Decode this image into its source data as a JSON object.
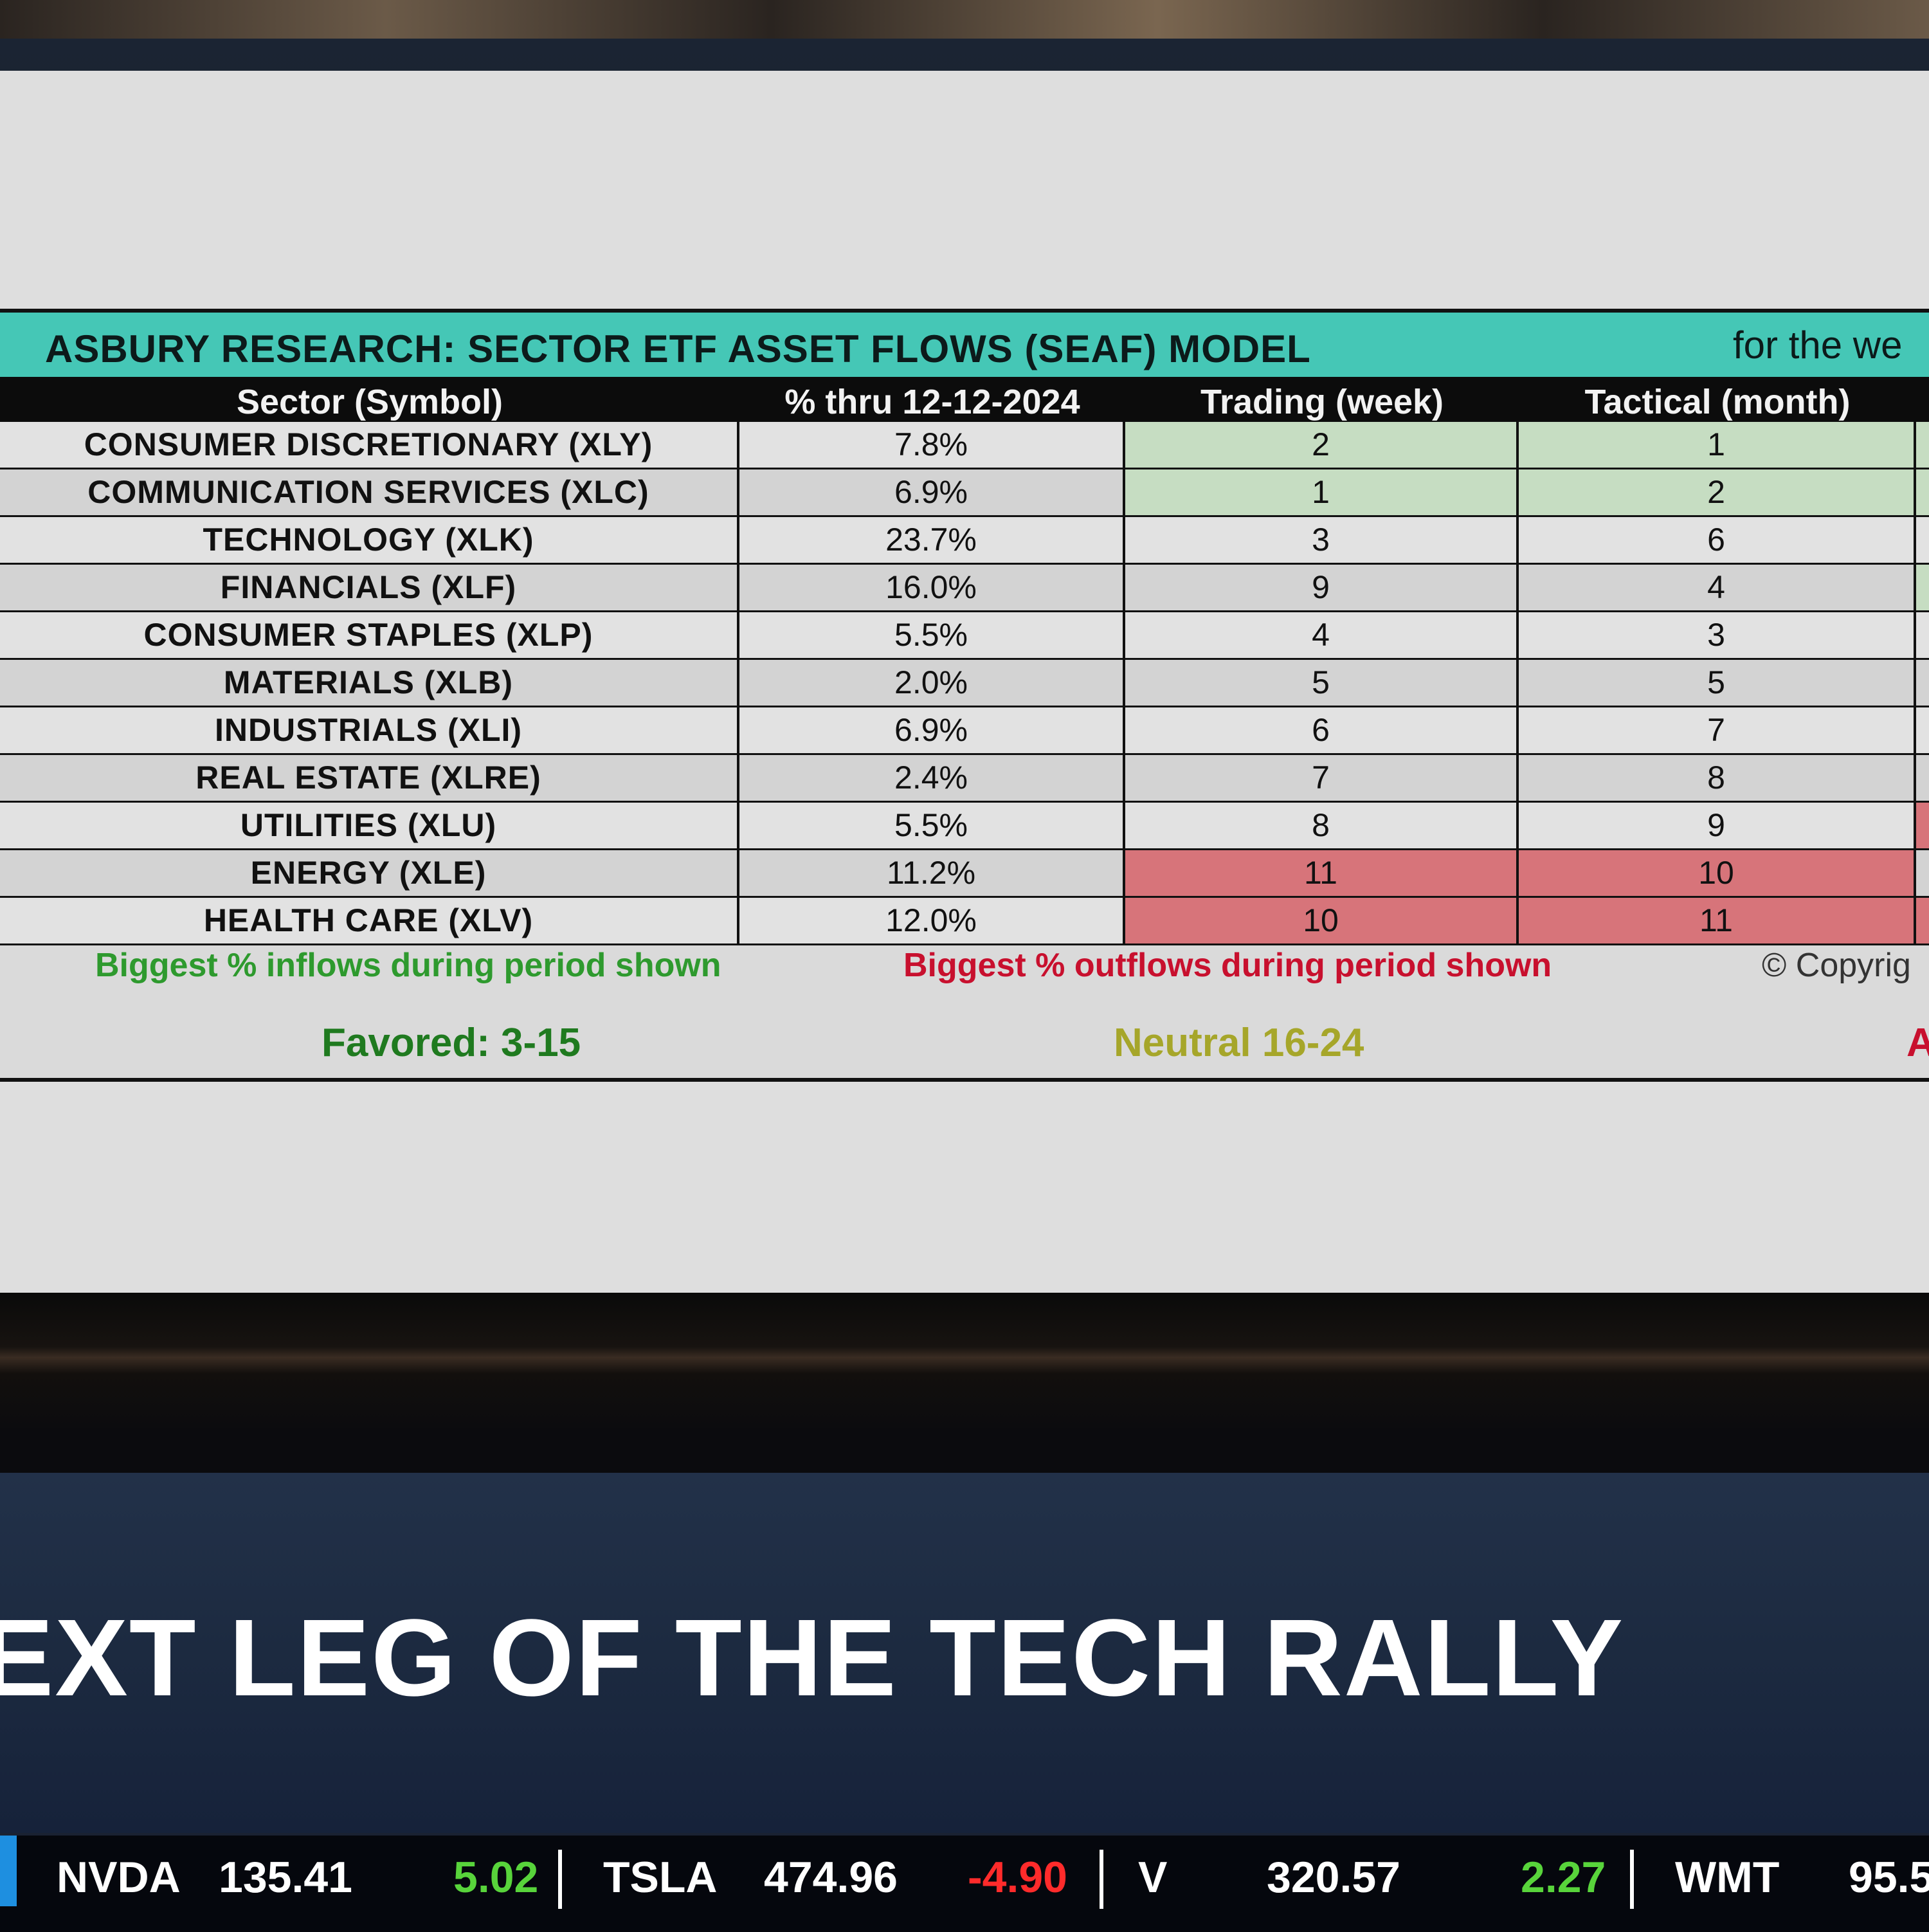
{
  "table": {
    "title": "ASBURY RESEARCH: SECTOR ETF ASSET FLOWS (SEAF) MODEL",
    "title_right": "for the we",
    "headers": [
      "Sector (Symbol)",
      "% thru 12-12-2024",
      "Trading (week)",
      "Tactical (month)"
    ],
    "rows": [
      {
        "sector": "CONSUMER DISCRETIONARY (XLY)",
        "pct": "7.8%",
        "trading": "2",
        "tactical": "1"
      },
      {
        "sector": "COMMUNICATION SERVICES (XLC)",
        "pct": "6.9%",
        "trading": "1",
        "tactical": "2"
      },
      {
        "sector": "TECHNOLOGY (XLK)",
        "pct": "23.7%",
        "trading": "3",
        "tactical": "6"
      },
      {
        "sector": "FINANCIALS (XLF)",
        "pct": "16.0%",
        "trading": "9",
        "tactical": "4"
      },
      {
        "sector": "CONSUMER STAPLES (XLP)",
        "pct": "5.5%",
        "trading": "4",
        "tactical": "3"
      },
      {
        "sector": "MATERIALS (XLB)",
        "pct": "2.0%",
        "trading": "5",
        "tactical": "5"
      },
      {
        "sector": "INDUSTRIALS (XLI)",
        "pct": "6.9%",
        "trading": "6",
        "tactical": "7"
      },
      {
        "sector": "REAL ESTATE (XLRE)",
        "pct": "2.4%",
        "trading": "7",
        "tactical": "8"
      },
      {
        "sector": "UTILITIES (XLU)",
        "pct": "5.5%",
        "trading": "8",
        "tactical": "9"
      },
      {
        "sector": "ENERGY (XLE)",
        "pct": "11.2%",
        "trading": "11",
        "tactical": "10"
      },
      {
        "sector": "HEALTH CARE (XLV)",
        "pct": "12.0%",
        "trading": "10",
        "tactical": "11"
      }
    ],
    "legend_inflows": "Biggest % inflows during period shown",
    "legend_outflows": "Biggest % outflows during period shown",
    "copyright": "© Copyrig",
    "favored": "Favored: 3-15",
    "neutral": "Neutral 16-24",
    "avoid_fragment": "A",
    "colors": {
      "inflow": "#c6ddc2",
      "outflow": "#d7747a",
      "title_bar": "#45c7b6"
    }
  },
  "headline": "EXT LEG OF THE TECH RALLY",
  "ticker": [
    {
      "symbol": "NVDA",
      "price": "135.41",
      "change": "5.02",
      "direction": "up"
    },
    {
      "symbol": "TSLA",
      "price": "474.96",
      "change": "-4.90",
      "direction": "down"
    },
    {
      "symbol": "V",
      "price": "320.57",
      "change": "2.27",
      "direction": "up"
    },
    {
      "symbol": "WMT",
      "price": "95.5",
      "change": "",
      "direction": "none"
    }
  ]
}
